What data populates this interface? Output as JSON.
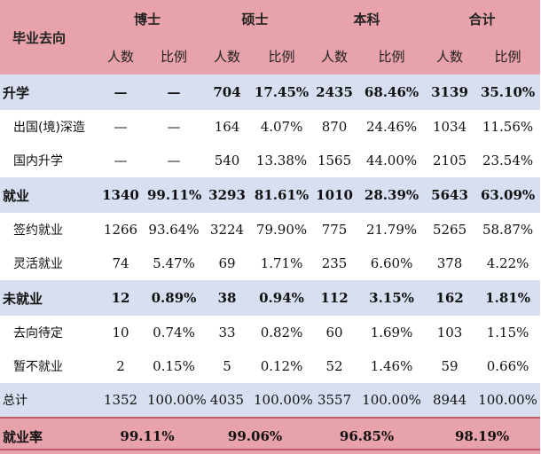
{
  "header": {
    "corner": "毕业去向",
    "groups": [
      "博士",
      "硕士",
      "本科",
      "合计"
    ],
    "sub": [
      "人数",
      "比例",
      "人数",
      "比例",
      "人数",
      "比例",
      "人数",
      "比例"
    ]
  },
  "rows": [
    {
      "label": "升学",
      "cells": [
        "—",
        "—",
        "704",
        "17.45%",
        "2435",
        "68.46%",
        "3139",
        "35.10%"
      ]
    },
    {
      "label": "出国(境)深造",
      "cells": [
        "—",
        "—",
        "164",
        "4.07%",
        "870",
        "24.46%",
        "1034",
        "11.56%"
      ]
    },
    {
      "label": "国内升学",
      "cells": [
        "—",
        "—",
        "540",
        "13.38%",
        "1565",
        "44.00%",
        "2105",
        "23.54%"
      ]
    },
    {
      "label": "就业",
      "cells": [
        "1340",
        "99.11%",
        "3293",
        "81.61%",
        "1010",
        "28.39%",
        "5643",
        "63.09%"
      ]
    },
    {
      "label": "签约就业",
      "cells": [
        "1266",
        "93.64%",
        "3224",
        "79.90%",
        "775",
        "21.79%",
        "5265",
        "58.87%"
      ]
    },
    {
      "label": "灵活就业",
      "cells": [
        "74",
        "5.47%",
        "69",
        "1.71%",
        "235",
        "6.60%",
        "378",
        "4.22%"
      ]
    },
    {
      "label": "未就业",
      "cells": [
        "12",
        "0.89%",
        "38",
        "0.94%",
        "112",
        "3.15%",
        "162",
        "1.81%"
      ]
    },
    {
      "label": "去向待定",
      "cells": [
        "10",
        "0.74%",
        "33",
        "0.82%",
        "60",
        "1.69%",
        "103",
        "1.15%"
      ]
    },
    {
      "label": "暂不就业",
      "cells": [
        "2",
        "0.15%",
        "5",
        "0.12%",
        "52",
        "1.46%",
        "59",
        "0.66%"
      ]
    },
    {
      "label": "总计",
      "cells": [
        "1352",
        "100.00%",
        "4035",
        "100.00%",
        "3557",
        "100.00%",
        "8944",
        "100.00%"
      ]
    }
  ],
  "rate_row": {
    "label": "就业率",
    "values": [
      "99.11%",
      "99.06%",
      "96.85%",
      "98.19%"
    ]
  },
  "colors": {
    "header_bg": "#e8a2ab",
    "category_bg": "#d7dff0",
    "rule": "#c45a68"
  }
}
